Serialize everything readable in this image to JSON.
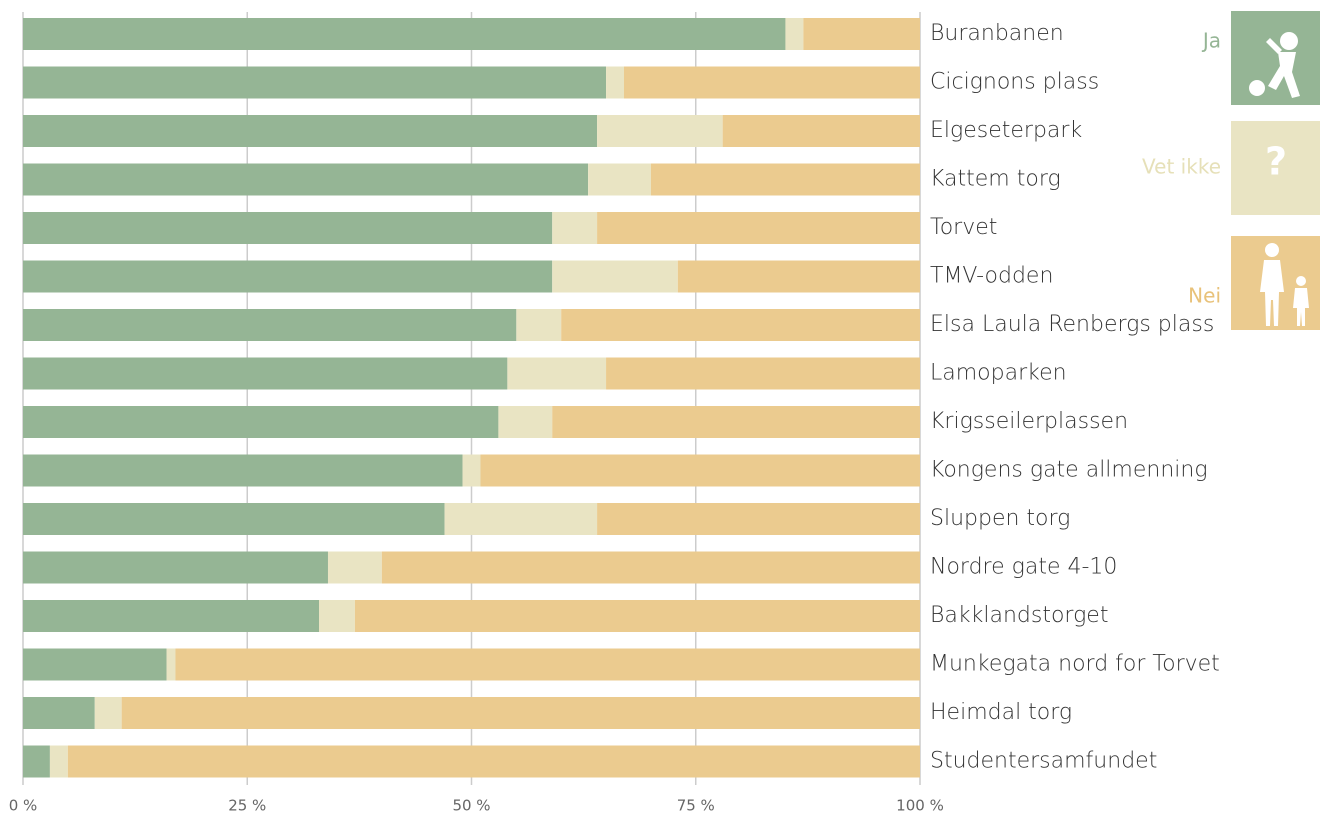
{
  "chart_data": {
    "type": "stacked-bar-horizontal",
    "categories": [
      "Buranbanen",
      "Cicignons plass",
      "Elgeseterpark",
      "Kattem torg",
      "Torvet",
      "TMV-odden",
      "Elsa Laula Renbergs plass",
      "Lamoparken",
      "Krigsseilerplassen",
      "Kongens gate allmenning",
      "Sluppen torg",
      "Nordre gate 4-10",
      "Bakklandstorget",
      "Munkegata nord for Torvet",
      "Heimdal torg",
      "Studentersamfundet"
    ],
    "series": [
      {
        "name": "Ja",
        "color": "#95b595",
        "label_color": "#95b595",
        "values": [
          85,
          65,
          64,
          63,
          59,
          59,
          55,
          54,
          53,
          49,
          47,
          34,
          33,
          16,
          8,
          3
        ]
      },
      {
        "name": "Vet ikke",
        "color": "#e9e4c3",
        "label_color": "#e6e0b8",
        "values": [
          2,
          2,
          14,
          7,
          5,
          14,
          5,
          11,
          6,
          2,
          17,
          6,
          4,
          1,
          3,
          2
        ]
      },
      {
        "name": "Nei",
        "color": "#ebcb8f",
        "label_color": "#e8c27a",
        "values": [
          13,
          33,
          22,
          30,
          36,
          27,
          40,
          35,
          41,
          49,
          36,
          60,
          63,
          83,
          89,
          95
        ]
      }
    ],
    "xlim": [
      0,
      100
    ],
    "xticks": [
      {
        "value": 0,
        "label": "0 %"
      },
      {
        "value": 25,
        "label": "25 %"
      },
      {
        "value": 50,
        "label": "50 %"
      },
      {
        "value": 75,
        "label": "75 %"
      },
      {
        "value": 100,
        "label": "100 %"
      }
    ],
    "grid": true,
    "legend": "right"
  }
}
